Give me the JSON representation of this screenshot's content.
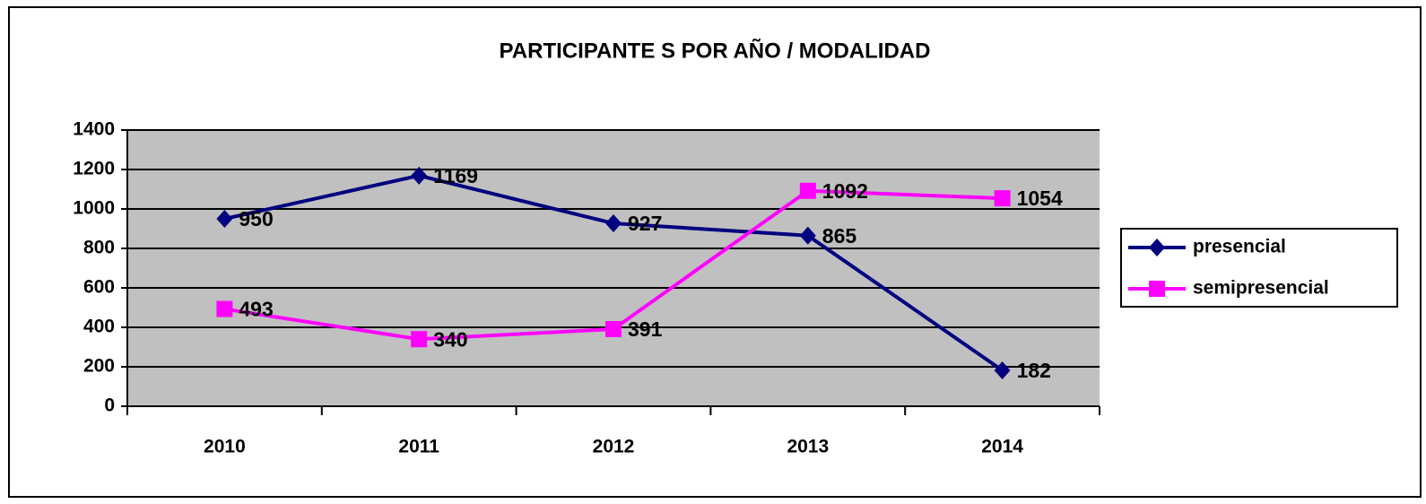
{
  "chart_data": {
    "type": "line",
    "title": "PARTICIPANTE S POR AÑO / MODALIDAD",
    "categories": [
      "2010",
      "2011",
      "2012",
      "2013",
      "2014"
    ],
    "series": [
      {
        "name": "presencial",
        "color": "#000080",
        "marker": "diamond",
        "values": [
          950,
          1169,
          927,
          865,
          182
        ]
      },
      {
        "name": "semipresencial",
        "color": "#ff00ff",
        "marker": "square",
        "values": [
          493,
          340,
          391,
          1092,
          1054
        ]
      }
    ],
    "ylim": [
      0,
      1400
    ],
    "yticks": [
      0,
      200,
      400,
      600,
      800,
      1000,
      1200,
      1400
    ],
    "grid": true,
    "legend": "right"
  }
}
